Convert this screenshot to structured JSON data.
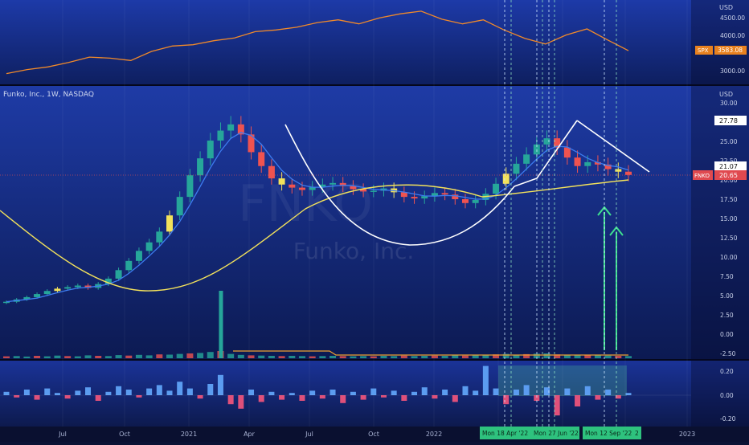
{
  "header": {
    "symbol_title": "Funko, Inc., 1W, NASDAQ",
    "watermark": "Funko, Inc.",
    "watermark_ticker": "FNKO"
  },
  "chart_data": [
    {
      "type": "line",
      "name": "spx-panel",
      "currency": "USD",
      "series_tag": "SPX",
      "last_value_label": "3583.08",
      "y_ticks": [
        "4500.00",
        "4000.00",
        "3000.00"
      ],
      "x_dates": [
        "2020-04",
        "2020-05",
        "2020-06",
        "2020-07",
        "2020-08",
        "2020-09",
        "2020-10",
        "2020-11",
        "2020-12",
        "2021-01",
        "2021-02",
        "2021-03",
        "2021-04",
        "2021-05",
        "2021-06",
        "2021-07",
        "2021-08",
        "2021-09",
        "2021-10",
        "2021-11",
        "2021-12",
        "2022-01",
        "2022-02",
        "2022-03",
        "2022-04",
        "2022-05",
        "2022-06",
        "2022-07",
        "2022-08",
        "2022-09",
        "2022-10"
      ],
      "values": [
        2900,
        3020,
        3100,
        3230,
        3390,
        3360,
        3290,
        3560,
        3720,
        3760,
        3880,
        3960,
        4150,
        4200,
        4280,
        4420,
        4500,
        4380,
        4560,
        4680,
        4760,
        4520,
        4380,
        4500,
        4200,
        3950,
        3780,
        4050,
        4230,
        3900,
        3583
      ]
    },
    {
      "type": "candlestick",
      "name": "fnko-price-panel",
      "currency": "USD",
      "y_ticks": [
        "30.00",
        "25.00",
        "22.50",
        "20.00",
        "17.50",
        "15.00",
        "12.50",
        "10.00",
        "7.50",
        "5.00",
        "2.50",
        "0.00",
        "-2.50"
      ],
      "price_labels": {
        "high_marker": "27.78",
        "level_marker": "21.07",
        "last_price": "20.65",
        "ticker": "FNKO"
      },
      "x_tick_labels": [
        "Jul",
        "Oct",
        "2021",
        "Apr",
        "Jul",
        "Oct",
        "2022",
        "Apr",
        "Jul",
        "Oct",
        "2023"
      ],
      "overlays": [
        "blue-short-ma",
        "yellow-long-ma",
        "cup-and-handle-curve",
        "descending-trendline",
        "vertical-dashed-markers",
        "green-up-arrows"
      ],
      "close_values": [
        4.2,
        4.5,
        4.8,
        5.2,
        5.6,
        5.9,
        6.1,
        6.3,
        6.0,
        6.5,
        7.2,
        8.3,
        9.5,
        10.8,
        11.9,
        13.3,
        15.4,
        17.8,
        20.6,
        22.8,
        25.1,
        26.4,
        27.2,
        25.9,
        23.6,
        21.8,
        20.2,
        19.4,
        19.0,
        18.7,
        19.1,
        19.4,
        19.6,
        19.2,
        18.8,
        18.5,
        18.6,
        18.9,
        18.4,
        17.8,
        17.6,
        17.9,
        18.3,
        18.1,
        17.5,
        17.0,
        17.4,
        18.2,
        19.5,
        20.8,
        22.1,
        23.3,
        24.6,
        25.4,
        24.2,
        22.9,
        21.8,
        22.3,
        22.0,
        21.4,
        21.07,
        20.65
      ]
    },
    {
      "type": "bar",
      "name": "fnko-volume",
      "values": [
        0.8,
        0.9,
        0.7,
        1.0,
        0.8,
        1.1,
        0.9,
        0.8,
        1.2,
        1.0,
        0.9,
        1.3,
        1.1,
        1.4,
        1.2,
        1.6,
        1.5,
        1.8,
        2.0,
        2.2,
        2.6,
        3.0,
        1.8,
        1.4,
        1.2,
        1.1,
        1.0,
        0.9,
        1.0,
        0.9,
        0.8,
        0.9,
        1.0,
        0.9,
        0.8,
        0.9,
        0.8,
        1.0,
        0.9,
        1.1,
        0.9,
        1.0,
        1.1,
        1.0,
        1.2,
        1.1,
        1.3,
        1.4,
        1.6,
        1.8,
        1.5,
        1.7,
        1.9,
        2.0,
        1.6,
        1.4,
        1.3,
        1.5,
        1.2,
        1.1,
        1.0,
        0.9
      ],
      "spike_value": 10.5
    },
    {
      "type": "bar",
      "name": "oscillator-panel",
      "y_ticks": [
        "0.20",
        "0.00",
        "-0.20"
      ],
      "date_badges": [
        "Mon 18 Apr '22",
        "Mon 27 Jun '22",
        "Mon 12 Sep '22",
        "2"
      ],
      "values": [
        0.03,
        -0.02,
        0.05,
        -0.04,
        0.06,
        0.02,
        -0.03,
        0.04,
        0.07,
        -0.05,
        0.03,
        0.08,
        0.05,
        -0.02,
        0.06,
        0.09,
        0.04,
        0.12,
        0.06,
        -0.03,
        0.1,
        0.18,
        -0.08,
        -0.12,
        0.05,
        -0.06,
        0.03,
        -0.04,
        0.02,
        -0.05,
        0.04,
        -0.03,
        0.05,
        -0.07,
        0.03,
        -0.04,
        0.06,
        -0.02,
        0.04,
        -0.05,
        0.03,
        0.07,
        -0.03,
        0.05,
        -0.06,
        0.08,
        0.04,
        0.26,
        0.06,
        -0.08,
        0.05,
        0.09,
        -0.05,
        0.07,
        -0.18,
        0.06,
        -0.1,
        0.08,
        -0.04,
        0.05,
        -0.03,
        0.02
      ]
    }
  ]
}
